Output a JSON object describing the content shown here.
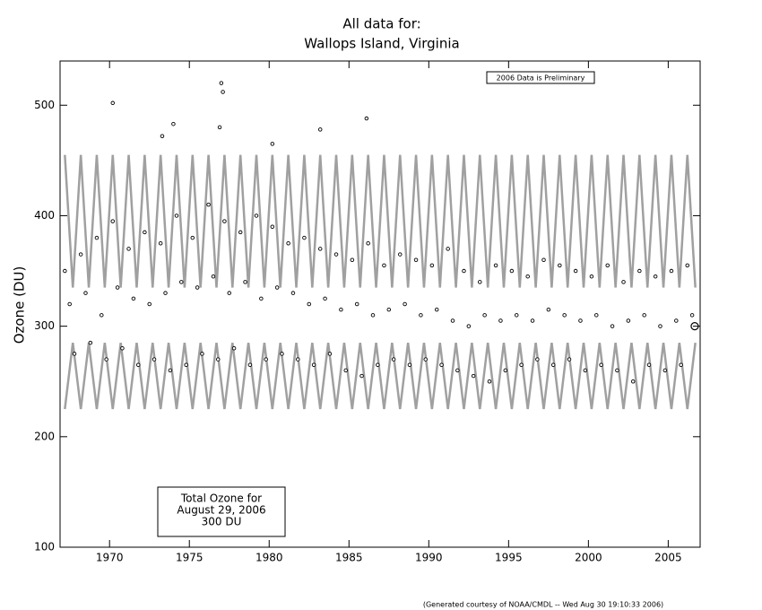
{
  "chart_data": {
    "type": "scatter",
    "title": "All data for:",
    "subtitle": "Wallops Island, Virginia",
    "ylabel": "Ozone (DU)",
    "xlim": [
      1966.9,
      2007.0
    ],
    "ylim": [
      100,
      540
    ],
    "xticks": [
      1970,
      1975,
      1980,
      1985,
      1990,
      1995,
      2000,
      2005
    ],
    "yticks": [
      100,
      200,
      300,
      400,
      500
    ],
    "annotations": [
      "2006 Data is Preliminary",
      "Total Ozone for",
      "August 29, 2006",
      "300 DU"
    ],
    "footer": "(Generated courtesy of NOAA/CMDL -- Wed Aug 30 19:10:33 2006)",
    "series": [
      {
        "type": "line",
        "color": "#a0a0a0",
        "x": [
          1967.2,
          1967.7,
          1968.2,
          1968.7,
          1969.2,
          1969.7,
          1970.2,
          1970.7,
          1971.2,
          1971.7,
          1972.2,
          1972.7,
          1973.2,
          1973.7,
          1974.2,
          1974.7,
          1975.2,
          1975.7,
          1976.2,
          1976.7,
          1977.2,
          1977.7,
          1978.2,
          1978.7,
          1979.2,
          1979.7,
          1980.2,
          1980.7,
          1981.2,
          1981.7,
          1982.2,
          1982.7,
          1983.2,
          1983.7,
          1984.2,
          1984.7,
          1985.2,
          1985.7,
          1986.2,
          1986.7,
          1987.2,
          1987.7,
          1988.2,
          1988.7,
          1989.2,
          1989.7,
          1990.2,
          1990.7,
          1991.2,
          1991.7,
          1992.2,
          1992.7,
          1993.2,
          1993.7,
          1994.2,
          1994.7,
          1995.2,
          1995.7,
          1996.2,
          1996.7,
          1997.2,
          1997.7,
          1998.2,
          1998.7,
          1999.2,
          1999.7,
          2000.2,
          2000.7,
          2001.2,
          2001.7,
          2002.2,
          2002.7,
          2003.2,
          2003.7,
          2004.2,
          2004.7,
          2005.2,
          2005.7,
          2006.2,
          2006.7
        ],
        "values": [
          455,
          335,
          455,
          335,
          455,
          335,
          455,
          335,
          455,
          335,
          455,
          335,
          455,
          335,
          455,
          335,
          455,
          335,
          455,
          335,
          455,
          335,
          455,
          335,
          455,
          335,
          455,
          335,
          455,
          335,
          455,
          335,
          455,
          335,
          455,
          335,
          455,
          335,
          455,
          335,
          455,
          335,
          455,
          335,
          455,
          335,
          455,
          335,
          455,
          335,
          455,
          335,
          455,
          335,
          455,
          335,
          455,
          335,
          455,
          335,
          455,
          335,
          455,
          335,
          455,
          335,
          455,
          335,
          455,
          335,
          455,
          335,
          455,
          335,
          455,
          335,
          455,
          335,
          455,
          335
        ]
      },
      {
        "type": "line",
        "color": "#a0a0a0",
        "x": [
          1967.2,
          1967.7,
          1968.2,
          1968.7,
          1969.2,
          1969.7,
          1970.2,
          1970.7,
          1971.2,
          1971.7,
          1972.2,
          1972.7,
          1973.2,
          1973.7,
          1974.2,
          1974.7,
          1975.2,
          1975.7,
          1976.2,
          1976.7,
          1977.2,
          1977.7,
          1978.2,
          1978.7,
          1979.2,
          1979.7,
          1980.2,
          1980.7,
          1981.2,
          1981.7,
          1982.2,
          1982.7,
          1983.2,
          1983.7,
          1984.2,
          1984.7,
          1985.2,
          1985.7,
          1986.2,
          1986.7,
          1987.2,
          1987.7,
          1988.2,
          1988.7,
          1989.2,
          1989.7,
          1990.2,
          1990.7,
          1991.2,
          1991.7,
          1992.2,
          1992.7,
          1993.2,
          1993.7,
          1994.2,
          1994.7,
          1995.2,
          1995.7,
          1996.2,
          1996.7,
          1997.2,
          1997.7,
          1998.2,
          1998.7,
          1999.2,
          1999.7,
          2000.2,
          2000.7,
          2001.2,
          2001.7,
          2002.2,
          2002.7,
          2003.2,
          2003.7,
          2004.2,
          2004.7,
          2005.2,
          2005.7,
          2006.2,
          2006.7
        ],
        "values": [
          225,
          285,
          225,
          285,
          225,
          285,
          225,
          285,
          225,
          285,
          225,
          285,
          225,
          285,
          225,
          285,
          225,
          285,
          225,
          285,
          225,
          285,
          225,
          285,
          225,
          285,
          225,
          285,
          225,
          285,
          225,
          285,
          225,
          285,
          225,
          285,
          225,
          285,
          225,
          285,
          225,
          285,
          225,
          285,
          225,
          285,
          225,
          285,
          225,
          285,
          225,
          285,
          225,
          285,
          225,
          285,
          225,
          285,
          225,
          285,
          225,
          285,
          225,
          285,
          225,
          285,
          225,
          285,
          225,
          285,
          225,
          285,
          225,
          285,
          225,
          285,
          225,
          285,
          225,
          285
        ]
      },
      {
        "type": "scatter",
        "color": "#000000",
        "x": [
          1967.2,
          1967.5,
          1967.8,
          1968.2,
          1968.5,
          1968.8,
          1969.2,
          1969.5,
          1969.8,
          1970.2,
          1970.5,
          1970.8,
          1971.2,
          1971.5,
          1971.8,
          1972.2,
          1972.5,
          1972.8,
          1973.2,
          1973.5,
          1973.8,
          1974.2,
          1974.5,
          1974.8,
          1975.2,
          1975.5,
          1975.8,
          1976.2,
          1976.5,
          1976.8,
          1977.2,
          1977.5,
          1977.8,
          1978.2,
          1978.5,
          1978.8,
          1979.2,
          1979.5,
          1979.8,
          1980.2,
          1980.5,
          1980.8,
          1981.2,
          1981.5,
          1981.8,
          1982.2,
          1982.5,
          1982.8,
          1983.2,
          1983.5,
          1983.8,
          1984.2,
          1984.5,
          1984.8,
          1985.2,
          1985.5,
          1985.8,
          1986.2,
          1986.5,
          1986.8,
          1987.2,
          1987.5,
          1987.8,
          1988.2,
          1988.5,
          1988.8,
          1989.2,
          1989.5,
          1989.8,
          1990.2,
          1990.5,
          1990.8,
          1991.2,
          1991.5,
          1991.8,
          1992.2,
          1992.5,
          1992.8,
          1993.2,
          1993.5,
          1993.8,
          1994.2,
          1994.5,
          1994.8,
          1995.2,
          1995.5,
          1995.8,
          1996.2,
          1996.5,
          1996.8,
          1997.2,
          1997.5,
          1997.8,
          1998.2,
          1998.5,
          1998.8,
          1999.2,
          1999.5,
          1999.8,
          2000.2,
          2000.5,
          2000.8,
          2001.2,
          2001.5,
          2001.8,
          2002.2,
          2002.5,
          2002.8,
          2003.2,
          2003.5,
          2003.8,
          2004.2,
          2004.5,
          2004.8,
          2005.2,
          2005.5,
          2005.8,
          2006.2,
          2006.5,
          1970.2,
          1973.3,
          1974.0,
          1976.9,
          1977.0,
          1977.1,
          1980.2,
          1983.2,
          1986.1
        ],
        "values": [
          350,
          320,
          275,
          365,
          330,
          285,
          380,
          310,
          270,
          395,
          335,
          280,
          370,
          325,
          265,
          385,
          320,
          270,
          375,
          330,
          260,
          400,
          340,
          265,
          380,
          335,
          275,
          410,
          345,
          270,
          395,
          330,
          280,
          385,
          340,
          265,
          400,
          325,
          270,
          390,
          335,
          275,
          375,
          330,
          270,
          380,
          320,
          265,
          370,
          325,
          275,
          365,
          315,
          260,
          360,
          320,
          255,
          375,
          310,
          265,
          355,
          315,
          270,
          365,
          320,
          265,
          360,
          310,
          270,
          355,
          315,
          265,
          370,
          305,
          260,
          350,
          300,
          255,
          340,
          310,
          250,
          355,
          305,
          260,
          350,
          310,
          265,
          345,
          305,
          270,
          360,
          315,
          265,
          355,
          310,
          270,
          350,
          305,
          260,
          345,
          310,
          265,
          355,
          300,
          260,
          340,
          305,
          250,
          350,
          310,
          265,
          345,
          300,
          260,
          350,
          305,
          265,
          355,
          310,
          502,
          472,
          483,
          480,
          520,
          512,
          465,
          478,
          488
        ]
      },
      {
        "type": "highlight",
        "color": "#000000",
        "x": [
          2006.66
        ],
        "values": [
          300
        ]
      }
    ]
  }
}
